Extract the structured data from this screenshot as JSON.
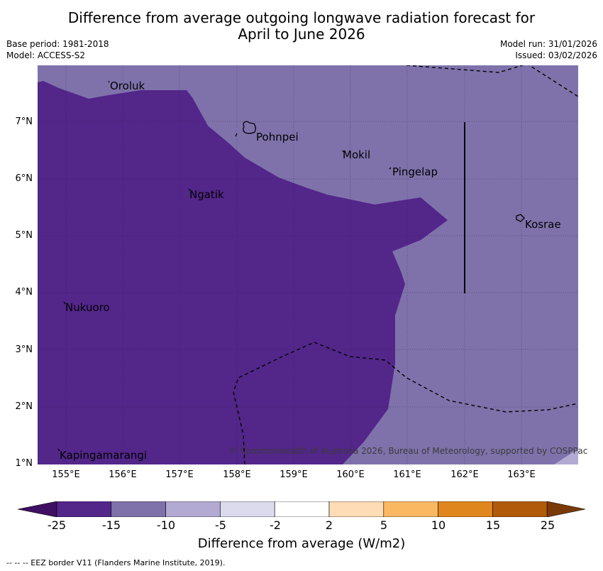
{
  "title_line1": "Difference from average outgoing longwave radiation forecast for",
  "title_line2": "April to June 2026",
  "base_period": "Base period: 1981-2018",
  "model": "Model: ACCESS-S2",
  "model_run": "Model run: 31/01/2026",
  "issued": "Issued: 03/02/2026",
  "lat_labels": [
    "7°N",
    "6°N",
    "5°N",
    "4°N",
    "3°N",
    "2°N",
    "1°N"
  ],
  "lon_labels": [
    "155°E",
    "156°E",
    "157°E",
    "158°E",
    "159°E",
    "160°E",
    "161°E",
    "162°E",
    "163°E"
  ],
  "places": {
    "oroluk": "Oroluk",
    "pohnpei": "Pohnpei",
    "mokil": "Mokil",
    "pingelap": "Pingelap",
    "ngatik": "Ngatik",
    "kosrae": "Kosrae",
    "nukuoro": "Nukuoro",
    "kapingamarangi": "Kapingamarangi"
  },
  "copyright": "© Commonwealth of Australia 2026, Bureau of Meteorology, supported by COSPPac",
  "colorbar": {
    "ticks": [
      "-25",
      "-15",
      "-10",
      "-5",
      "-2",
      "2",
      "5",
      "10",
      "15",
      "25"
    ],
    "colors": [
      "#3f0f63",
      "#53268a",
      "#7f72ab",
      "#b2aad3",
      "#dcdaed",
      "#ffffff",
      "#fddcb6",
      "#fbb862",
      "#e0861e",
      "#b15a0a",
      "#7a3a08"
    ],
    "label": "Difference from average (W/m2)"
  },
  "footer": "--  --  -- EEZ border V11 (Flanders Marine Institute, 2019).",
  "field_colors": {
    "dark": "#53268a",
    "mid": "#7f72ab",
    "light": "#b2aad3"
  }
}
